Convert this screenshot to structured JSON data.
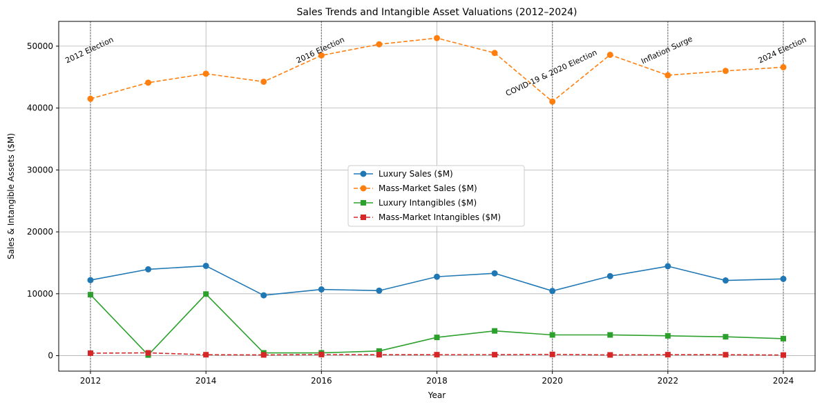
{
  "chart_data": {
    "type": "line",
    "title": "Sales Trends and Intangible Asset Valuations (2012–2024)",
    "xlabel": "Year",
    "ylabel": "Sales & Intangible Assets ($M)",
    "xlim": [
      2011.45,
      2024.55
    ],
    "ylim": [
      -2500,
      54000
    ],
    "x_ticks": [
      2012,
      2014,
      2016,
      2018,
      2020,
      2022,
      2024
    ],
    "y_ticks": [
      0,
      10000,
      20000,
      30000,
      40000,
      50000
    ],
    "grid": true,
    "legend_position": "center",
    "x": [
      2012,
      2013,
      2014,
      2015,
      2016,
      2017,
      2018,
      2019,
      2020,
      2021,
      2022,
      2023,
      2024
    ],
    "series": [
      {
        "name": "Luxury Sales ($M)",
        "color": "#1f77b4",
        "line_style": "solid",
        "marker": "circle",
        "values": [
          12200,
          13950,
          14500,
          9750,
          10700,
          10500,
          12750,
          13300,
          10450,
          12850,
          14450,
          12150,
          12400
        ]
      },
      {
        "name": "Mass-Market Sales ($M)",
        "color": "#ff7f0e",
        "line_style": "dashed",
        "marker": "circle",
        "values": [
          41500,
          44100,
          45550,
          44250,
          48500,
          50300,
          51300,
          48900,
          41050,
          48600,
          45300,
          46000,
          46600
        ]
      },
      {
        "name": "Luxury Intangibles ($M)",
        "color": "#2ca02c",
        "line_style": "solid",
        "marker": "square",
        "values": [
          9850,
          100,
          9950,
          450,
          450,
          750,
          2950,
          4000,
          3350,
          3350,
          3200,
          3050,
          2750
        ]
      },
      {
        "name": "Mass-Market Intangibles ($M)",
        "color": "#d62728",
        "line_style": "dashed",
        "marker": "square",
        "values": [
          400,
          450,
          150,
          120,
          180,
          150,
          160,
          160,
          200,
          120,
          160,
          150,
          100
        ]
      }
    ],
    "annotations": [
      {
        "x": 2012,
        "label": "2012 Election",
        "y": 49000
      },
      {
        "x": 2016,
        "label": "2016 Election",
        "y": 49000
      },
      {
        "x": 2020,
        "label": "COVID-19 & 2020 Election",
        "y": 45300
      },
      {
        "x": 2022,
        "label": "Inflation Surge",
        "y": 49000
      },
      {
        "x": 2024,
        "label": "2024 Election",
        "y": 49000
      }
    ]
  }
}
